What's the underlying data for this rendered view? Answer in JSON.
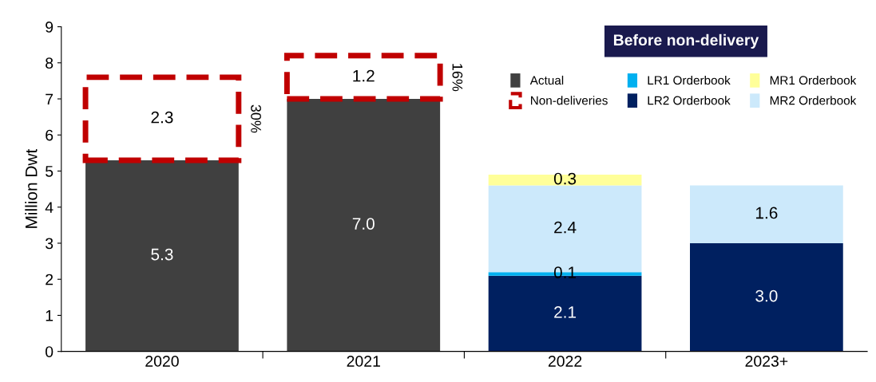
{
  "chart_data": {
    "type": "bar",
    "stacked": true,
    "ylabel": "Million Dwt",
    "categories": [
      "2020",
      "2021",
      "2022",
      "2023+"
    ],
    "series": [
      {
        "name": "Actual",
        "color": "#404040",
        "values": [
          5.3,
          7.0,
          null,
          null
        ],
        "value_labels": [
          "5.3",
          "7.0",
          null,
          null
        ]
      },
      {
        "name": "Non-deliveries",
        "color": "#c00000",
        "line_style": "dashed",
        "values": [
          2.3,
          1.2,
          null,
          null
        ],
        "value_labels": [
          "2.3",
          "1.2",
          null,
          null
        ]
      },
      {
        "name": "LR2 Orderbook",
        "color": "#002060",
        "values": [
          null,
          null,
          2.1,
          3.0
        ],
        "value_labels": [
          null,
          null,
          "2.1",
          "3.0"
        ]
      },
      {
        "name": "LR1 Orderbook",
        "color": "#00b0f0",
        "values": [
          null,
          null,
          0.1,
          null
        ],
        "value_labels": [
          null,
          null,
          "0.1",
          null
        ]
      },
      {
        "name": "MR2 Orderbook",
        "color": "#cce9fb",
        "values": [
          null,
          null,
          2.4,
          1.6
        ],
        "value_labels": [
          null,
          null,
          "2.4",
          "1.6"
        ]
      },
      {
        "name": "MR1 Orderbook",
        "color": "#ffff99",
        "values": [
          null,
          null,
          0.3,
          null
        ],
        "value_labels": [
          null,
          null,
          "0.3",
          null
        ]
      }
    ],
    "ylim": [
      0,
      9
    ],
    "yticks": [
      0,
      1,
      2,
      3,
      4,
      5,
      6,
      7,
      8,
      9
    ],
    "legend": "top right",
    "legend_title": "Before non-delivery",
    "annotations": [
      "30%",
      "16%"
    ],
    "grid": false
  }
}
